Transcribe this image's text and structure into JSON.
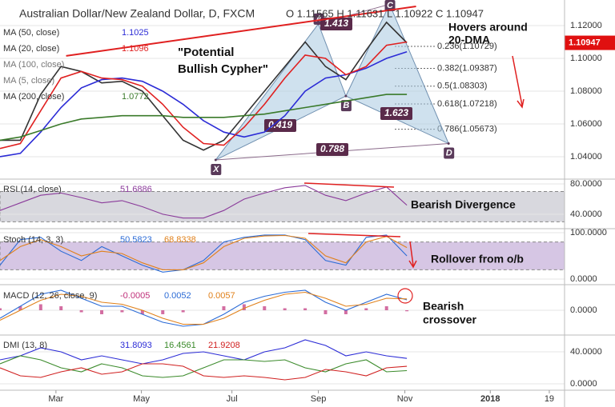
{
  "chart_data": [
    {
      "type": "line",
      "title": "Australian Dollar/New Zealand Dollar, D, FXCM",
      "ohlc": "O 1.11565 H 1.11631 L 1.10922 C 1.10947",
      "x": [
        0,
        2,
        4,
        6,
        8,
        10,
        12,
        14,
        16,
        18,
        20,
        22,
        24,
        26,
        28,
        30,
        32,
        34,
        36,
        38,
        40
      ],
      "xlim": [
        0,
        55.5
      ],
      "xticks": [
        {
          "value": 5.5,
          "label": "Mar"
        },
        {
          "value": 13.9,
          "label": "May"
        },
        {
          "value": 22.8,
          "label": "Jul"
        },
        {
          "value": 31.3,
          "label": "Sep"
        },
        {
          "value": 39.8,
          "label": "Nov"
        },
        {
          "value": 48.2,
          "label": "2018"
        },
        {
          "value": 54,
          "label": "19"
        }
      ],
      "ylim": [
        1.0268,
        1.1356
      ],
      "yticks": [
        {
          "value": 1.04,
          "label": "1.04000"
        },
        {
          "value": 1.06,
          "label": "1.06000"
        },
        {
          "value": 1.08,
          "label": "1.08000"
        },
        {
          "value": 1.1,
          "label": "1.10000"
        },
        {
          "value": 1.12,
          "label": "1.12000"
        }
      ],
      "last_price": 1.10947,
      "series": [
        {
          "color": "#333333",
          "values": [
            1.05,
            1.05,
            1.078,
            1.095,
            1.092,
            1.085,
            1.086,
            1.08,
            1.065,
            1.05,
            1.044,
            1.05,
            1.065,
            1.08,
            1.095,
            1.11,
            1.095,
            1.087,
            1.105,
            1.122,
            1.1095
          ]
        },
        {
          "name": "MA (50, close)",
          "reading": 1.1025,
          "color": "#2b2bd6",
          "values": [
            1.04,
            1.042,
            1.055,
            1.07,
            1.082,
            1.087,
            1.088,
            1.086,
            1.08,
            1.072,
            1.062,
            1.055,
            1.052,
            1.055,
            1.065,
            1.08,
            1.088,
            1.09,
            1.094,
            1.1,
            1.104
          ]
        },
        {
          "name": "MA (20, close)",
          "reading": 1.1096,
          "color": "#e02020",
          "values": [
            1.045,
            1.048,
            1.068,
            1.088,
            1.092,
            1.088,
            1.087,
            1.083,
            1.072,
            1.058,
            1.048,
            1.047,
            1.058,
            1.072,
            1.088,
            1.102,
            1.1,
            1.09,
            1.095,
            1.108,
            1.11
          ]
        },
        {
          "name": "MA (200, close)",
          "reading": 1.0772,
          "color": "#3a7a2a",
          "values": [
            1.05,
            1.052,
            1.056,
            1.06,
            1.063,
            1.064,
            1.065,
            1.065,
            1.065,
            1.064,
            1.064,
            1.064,
            1.065,
            1.066,
            1.068,
            1.07,
            1.072,
            1.074,
            1.076,
            1.078,
            1.078
          ]
        }
      ],
      "legend_extra": [
        "MA (100, close)",
        "MA (5, close)"
      ],
      "trendline": {
        "x": [
          6.5,
          40.9
        ],
        "y": [
          1.1015,
          1.1317
        ]
      },
      "pattern_points": [
        {
          "name": "X",
          "x": 21.2,
          "y": 1.038
        },
        {
          "name": "A",
          "x": 31.3,
          "y": 1.121
        },
        {
          "name": "B",
          "x": 34,
          "y": 1.077
        },
        {
          "name": "C",
          "x": 38.3,
          "y": 1.133
        },
        {
          "name": "D",
          "x": 44.1,
          "y": 1.048
        }
      ],
      "ratios": [
        "1.413",
        "0.419",
        "0.788",
        "1.623"
      ],
      "fib_levels": [
        {
          "value": 1.10729,
          "label": "0.236(1.10729)"
        },
        {
          "value": 1.09387,
          "label": "0.382(1.09387)"
        },
        {
          "value": 1.08303,
          "label": "0.5(1.08303)"
        },
        {
          "value": 1.07218,
          "label": "0.618(1.07218)"
        },
        {
          "value": 1.05673,
          "label": "0.786(1.05673)"
        }
      ],
      "annotations": [
        "\"Potential",
        "Bullish Cypher\"",
        "Hovers around",
        "20-DMA"
      ]
    },
    {
      "type": "line",
      "label": "RSI (14, close)",
      "ylim": [
        22,
        85.3
      ],
      "yticks": [
        {
          "value": 40,
          "label": "40.0000"
        },
        {
          "value": 80,
          "label": "80.0000"
        }
      ],
      "band": [
        30,
        70
      ],
      "series": [
        {
          "reading": 51.6886,
          "color": "#8a3a9a",
          "values": [
            45,
            55,
            65,
            68,
            62,
            55,
            58,
            50,
            40,
            35,
            35,
            45,
            60,
            68,
            75,
            78,
            65,
            58,
            68,
            76,
            52
          ]
        }
      ],
      "annotations": [
        "Bearish Divergence"
      ]
    },
    {
      "type": "line",
      "label": "Stoch (14, 3, 3)",
      "ylim": [
        -10.3,
        105.2
      ],
      "yticks": [
        {
          "value": 0,
          "label": "0.0000"
        },
        {
          "value": 100,
          "label": "100.0000"
        }
      ],
      "band": [
        20,
        80
      ],
      "series": [
        {
          "reading": 50.5823,
          "color": "#2b6bd6",
          "values": [
            30,
            85,
            90,
            60,
            40,
            70,
            50,
            30,
            15,
            20,
            40,
            80,
            90,
            95,
            95,
            85,
            40,
            30,
            90,
            95,
            50
          ]
        },
        {
          "reading": 68.8338,
          "color": "#e0801a",
          "values": [
            40,
            70,
            85,
            70,
            50,
            60,
            55,
            35,
            20,
            20,
            35,
            70,
            88,
            93,
            94,
            88,
            50,
            35,
            80,
            92,
            68
          ]
        }
      ],
      "annotations": [
        "Rollover from o/b"
      ]
    },
    {
      "type": "line",
      "label": "MACD (12, 26, close, 9)",
      "ylim": [
        -0.012,
        0.012
      ],
      "yticks": [
        {
          "value": 0,
          "label": "0.0000"
        }
      ],
      "series": [
        {
          "reading": -0.0005,
          "color": "#c0307a",
          "style": "bar",
          "values": [
            0.001,
            0.002,
            0.003,
            0.002,
            -0.001,
            -0.002,
            -0.001,
            -0.002,
            -0.002,
            -0.001,
            0,
            0.002,
            0.003,
            0.002,
            0.001,
            0.001,
            -0.002,
            -0.002,
            0.001,
            0.002,
            -0.0005
          ]
        },
        {
          "reading": 0.0052,
          "color": "#2b6bd6",
          "values": [
            -0.004,
            0.002,
            0.008,
            0.01,
            0.006,
            0.002,
            0.002,
            -0.002,
            -0.006,
            -0.008,
            -0.007,
            -0.002,
            0.004,
            0.007,
            0.009,
            0.01,
            0.004,
            0.0,
            0.004,
            0.008,
            0.0052
          ]
        },
        {
          "reading": 0.0057,
          "color": "#e0801a",
          "values": [
            -0.005,
            0.0,
            0.005,
            0.008,
            0.007,
            0.004,
            0.003,
            0.0,
            -0.004,
            -0.007,
            -0.007,
            -0.004,
            0.001,
            0.005,
            0.008,
            0.009,
            0.006,
            0.002,
            0.003,
            0.006,
            0.0057
          ]
        }
      ],
      "annotations": [
        "Bearish",
        "crossover"
      ]
    },
    {
      "type": "line",
      "label": "DMI (13, 8)",
      "ylim": [
        -7,
        60
      ],
      "yticks": [
        {
          "value": 0,
          "label": "0.0000"
        },
        {
          "value": 40,
          "label": "40.0000"
        }
      ],
      "series": [
        {
          "reading": 31.8093,
          "color": "#2b2bd6",
          "values": [
            30,
            35,
            45,
            40,
            30,
            35,
            30,
            25,
            30,
            38,
            40,
            35,
            30,
            40,
            45,
            55,
            48,
            35,
            40,
            35,
            31.8
          ]
        },
        {
          "reading": 16.4561,
          "color": "#3a8a2a",
          "values": [
            25,
            35,
            30,
            20,
            15,
            25,
            20,
            10,
            8,
            10,
            20,
            30,
            30,
            28,
            30,
            20,
            15,
            25,
            30,
            15,
            16.5
          ]
        },
        {
          "reading": 21.9208,
          "color": "#d02020",
          "values": [
            20,
            10,
            8,
            15,
            20,
            12,
            15,
            25,
            25,
            22,
            10,
            8,
            10,
            8,
            5,
            8,
            18,
            15,
            10,
            20,
            21.9
          ]
        }
      ]
    }
  ]
}
